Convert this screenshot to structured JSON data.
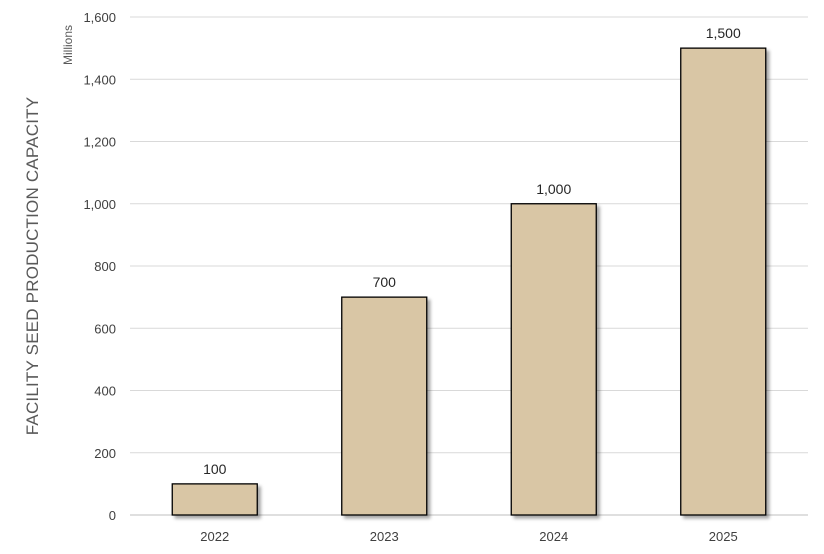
{
  "chart_data": {
    "type": "bar",
    "categories": [
      "2022",
      "2023",
      "2024",
      "2025"
    ],
    "values": [
      100,
      700,
      1000,
      1500
    ],
    "data_labels": [
      "100",
      "700",
      "1,000",
      "1,500"
    ],
    "ylabel": "FACILITY SEED PRODUCTION CAPACITY",
    "units_label": "Millions",
    "ylim": [
      0,
      1600
    ],
    "yticks": [
      0,
      200,
      400,
      600,
      800,
      1000,
      1200,
      1400,
      1600
    ],
    "ytick_labels": [
      "0",
      "200",
      "400",
      "600",
      "800",
      "1,000",
      "1,200",
      "1,400",
      "1,600"
    ],
    "grid": true,
    "legend": "none",
    "colors": {
      "bar_fill": "#d9c6a5",
      "bar_stroke": "#000000",
      "gridline": "#d9d9d9"
    }
  }
}
